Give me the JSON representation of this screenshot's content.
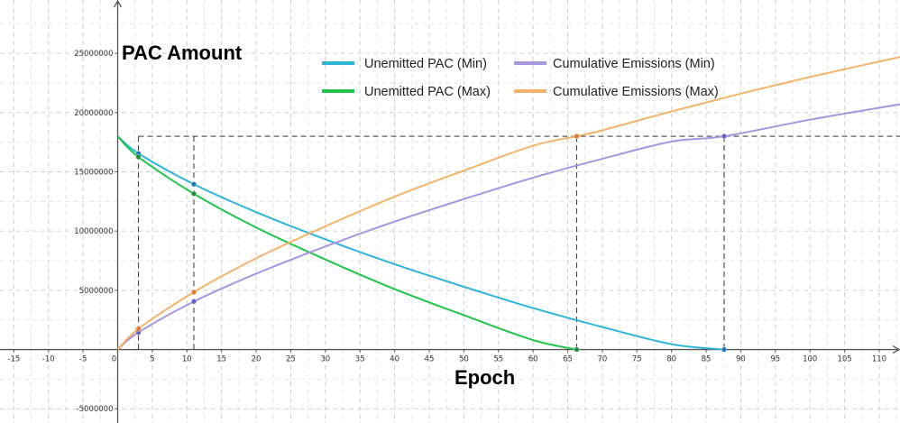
{
  "chart_data": {
    "type": "line",
    "ylabel": "PAC Amount",
    "xlabel": "Epoch",
    "xlim": [
      -17,
      113
    ],
    "ylim": [
      -6200000,
      29500000
    ],
    "x_ticks": [
      -15,
      -10,
      -5,
      0,
      5,
      10,
      15,
      20,
      25,
      30,
      35,
      40,
      45,
      50,
      55,
      60,
      65,
      70,
      75,
      80,
      85,
      90,
      95,
      100,
      105,
      110
    ],
    "x_tick_labels": [
      "-15",
      "-10",
      "-5",
      "0",
      "5",
      "10",
      "15",
      "20",
      "25",
      "30",
      "35",
      "40",
      "45",
      "50",
      "55",
      "60",
      "65",
      "70",
      "75",
      "80",
      "85",
      "90",
      "95",
      "100",
      "105",
      "110"
    ],
    "y_ticks": [
      -5000000,
      5000000,
      10000000,
      15000000,
      20000000,
      25000000
    ],
    "y_tick_labels": [
      "-5000000",
      "5000000",
      "10000000",
      "15000000",
      "20000000",
      "25000000"
    ],
    "grid": true,
    "legend_position": "top-center",
    "series": [
      {
        "name": "Unemitted PAC (Min)",
        "color": "#2fb4d8",
        "x": [
          0,
          3,
          11,
          20,
          30,
          40,
          50,
          60,
          70,
          80,
          87.6
        ],
        "y": [
          18000000,
          16550000,
          13950000,
          11600000,
          9300000,
          7200000,
          5300000,
          3500000,
          1900000,
          450000,
          0
        ]
      },
      {
        "name": "Unemitted PAC (Max)",
        "color": "#22c24b",
        "x": [
          0,
          3,
          11,
          20,
          30,
          40,
          50,
          60,
          66.3
        ],
        "y": [
          18000000,
          16250000,
          13150000,
          10300000,
          7600000,
          5100000,
          2900000,
          800000,
          0
        ]
      },
      {
        "name": "Cumulative Emissions (Min)",
        "color": "#a596dd",
        "x": [
          0,
          3,
          11,
          20,
          30,
          40,
          50,
          60,
          70,
          80,
          87.6,
          100,
          113
        ],
        "y": [
          0,
          1450000,
          4050000,
          6400000,
          8700000,
          10800000,
          12700000,
          14500000,
          16100000,
          17550000,
          18000000,
          19400000,
          20700000
        ]
      },
      {
        "name": "Cumulative Emissions (Max)",
        "color": "#f2b36b",
        "x": [
          0,
          3,
          11,
          20,
          30,
          40,
          50,
          60,
          66.3,
          70,
          80,
          90,
          100,
          113
        ],
        "y": [
          0,
          1750000,
          4850000,
          7700000,
          10400000,
          12900000,
          15100000,
          17200000,
          18000000,
          18500000,
          20100000,
          21600000,
          23000000,
          24700000
        ]
      }
    ],
    "reference_lines": {
      "horizontal_y": 18000000,
      "vertical_x": [
        3,
        11,
        66.3,
        87.6
      ]
    },
    "markers": [
      {
        "x": 3,
        "y": 16550000,
        "color": "#1f77b4"
      },
      {
        "x": 3,
        "y": 16250000,
        "color": "#1e8c3a"
      },
      {
        "x": 3,
        "y": 1450000,
        "color": "#6a5cc7"
      },
      {
        "x": 3,
        "y": 1750000,
        "color": "#e4782a"
      },
      {
        "x": 11,
        "y": 13950000,
        "color": "#1f77b4"
      },
      {
        "x": 11,
        "y": 13150000,
        "color": "#1e8c3a"
      },
      {
        "x": 11,
        "y": 4050000,
        "color": "#6a5cc7"
      },
      {
        "x": 11,
        "y": 4850000,
        "color": "#e4782a"
      },
      {
        "x": 66.3,
        "y": 18000000,
        "color": "#e4782a"
      },
      {
        "x": 66.3,
        "y": 0,
        "color": "#1e8c3a"
      },
      {
        "x": 87.6,
        "y": 18000000,
        "color": "#6a5cc7"
      },
      {
        "x": 87.6,
        "y": 0,
        "color": "#1f77b4"
      }
    ]
  }
}
